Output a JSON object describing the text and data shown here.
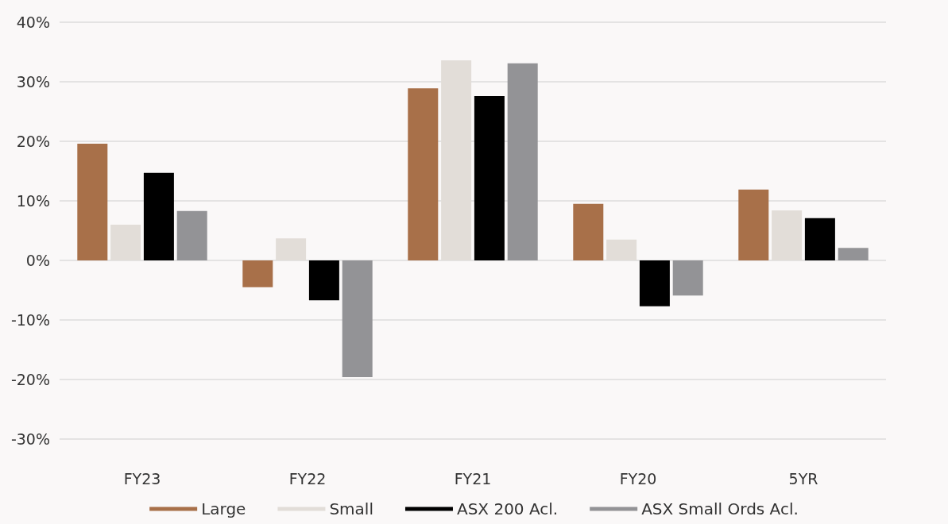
{
  "chart_data": {
    "type": "bar",
    "categories": [
      "FY23",
      "FY22",
      "FY21",
      "FY20",
      "5YR"
    ],
    "series": [
      {
        "name": "Large",
        "color": "#a87049",
        "values": [
          19.6,
          -4.5,
          28.9,
          9.5,
          11.9
        ]
      },
      {
        "name": "Small",
        "color": "#e2ddd8",
        "values": [
          6.0,
          3.7,
          33.6,
          3.5,
          8.4
        ]
      },
      {
        "name": "ASX 200 Acl.",
        "color": "#000000",
        "values": [
          14.7,
          -6.7,
          27.6,
          -7.7,
          7.1
        ]
      },
      {
        "name": "ASX Small Ords Acl.",
        "color": "#939396",
        "values": [
          8.3,
          -19.6,
          33.1,
          -5.9,
          2.1
        ]
      }
    ],
    "ylim": [
      -30,
      40
    ],
    "yticks": [
      {
        "value": -30,
        "label": "-30%"
      },
      {
        "value": -20,
        "label": "-20%"
      },
      {
        "value": -10,
        "label": "-10%"
      },
      {
        "value": 0,
        "label": "0%"
      },
      {
        "value": 10,
        "label": "10%"
      },
      {
        "value": 20,
        "label": "20%"
      },
      {
        "value": 30,
        "label": "30%"
      },
      {
        "value": 40,
        "label": "40%"
      }
    ],
    "grid": "y",
    "legend": "bottom"
  }
}
